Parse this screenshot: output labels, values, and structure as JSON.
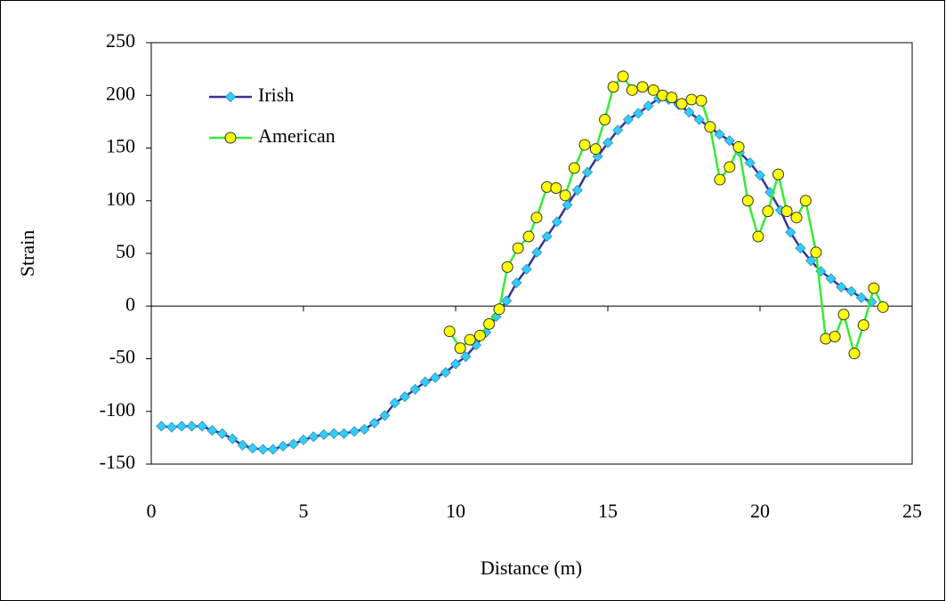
{
  "chart_data": {
    "type": "line",
    "xlabel": "Distance (m)",
    "ylabel": "Strain",
    "xlim": [
      0,
      25
    ],
    "xticks": [
      0,
      5,
      10,
      15,
      20,
      25
    ],
    "ylim": [
      -150,
      250
    ],
    "yticks": [
      -150,
      -100,
      -50,
      0,
      50,
      100,
      150,
      200,
      250
    ],
    "legend": "upper left",
    "series": [
      {
        "name": "Irish",
        "color": "#333399",
        "marker": "diamond",
        "marker_color": "#33ccff",
        "x": [
          0.33,
          0.67,
          1.0,
          1.33,
          1.67,
          2.0,
          2.33,
          2.67,
          3.0,
          3.33,
          3.67,
          4.0,
          4.33,
          4.67,
          5.0,
          5.33,
          5.67,
          6.0,
          6.33,
          6.67,
          7.0,
          7.33,
          7.67,
          8.0,
          8.33,
          8.67,
          9.0,
          9.33,
          9.67,
          10.0,
          10.33,
          10.67,
          11.0,
          11.33,
          11.67,
          12.0,
          12.33,
          12.67,
          13.0,
          13.33,
          13.67,
          14.0,
          14.33,
          14.67,
          15.0,
          15.33,
          15.67,
          16.0,
          16.33,
          16.67,
          17.0,
          17.33,
          17.67,
          18.0,
          18.33,
          18.67,
          19.0,
          19.33,
          19.67,
          20.0,
          20.33,
          20.67,
          21.0,
          21.33,
          21.67,
          22.0,
          22.33,
          22.67,
          23.0,
          23.33,
          23.67
        ],
        "values": [
          -114,
          -115,
          -114,
          -114,
          -114,
          -118,
          -121,
          -126,
          -132,
          -135,
          -136,
          -136,
          -133,
          -131,
          -127,
          -124,
          -122,
          -121,
          -121,
          -119,
          -117,
          -111,
          -104,
          -92,
          -86,
          -79,
          -72,
          -68,
          -63,
          -55,
          -48,
          -37,
          -25,
          -10,
          5,
          22,
          35,
          51,
          66,
          80,
          96,
          110,
          127,
          142,
          155,
          167,
          177,
          183,
          190,
          197,
          196,
          191,
          184,
          177,
          170,
          163,
          157,
          146,
          136,
          124,
          108,
          91,
          70,
          55,
          43,
          33,
          26,
          18,
          14,
          8,
          4
        ]
      },
      {
        "name": "American",
        "color": "#33ee33",
        "marker": "circle",
        "marker_color": "#ffff00",
        "x": [
          9.8,
          10.15,
          10.47,
          10.8,
          11.1,
          11.43,
          11.7,
          12.05,
          12.4,
          12.66,
          13.0,
          13.3,
          13.6,
          13.9,
          14.24,
          14.6,
          14.9,
          15.18,
          15.5,
          15.8,
          16.14,
          16.5,
          16.8,
          17.1,
          17.43,
          17.75,
          18.07,
          18.36,
          18.68,
          19.0,
          19.3,
          19.6,
          19.94,
          20.26,
          20.6,
          20.88,
          21.2,
          21.5,
          21.84,
          22.16,
          22.46,
          22.75,
          23.1,
          23.4,
          23.74,
          24.04
        ],
        "values": [
          -24,
          -40,
          -32,
          -28,
          -17,
          -3,
          37,
          55,
          66,
          84,
          113,
          112,
          105,
          131,
          153,
          149,
          177,
          208,
          218,
          205,
          208,
          205,
          200,
          198,
          192,
          196,
          195,
          170,
          120,
          132,
          151,
          100,
          66,
          90,
          125,
          90,
          84,
          100,
          51,
          -31,
          -29,
          -8,
          -45,
          -18,
          17,
          -1
        ]
      }
    ]
  }
}
